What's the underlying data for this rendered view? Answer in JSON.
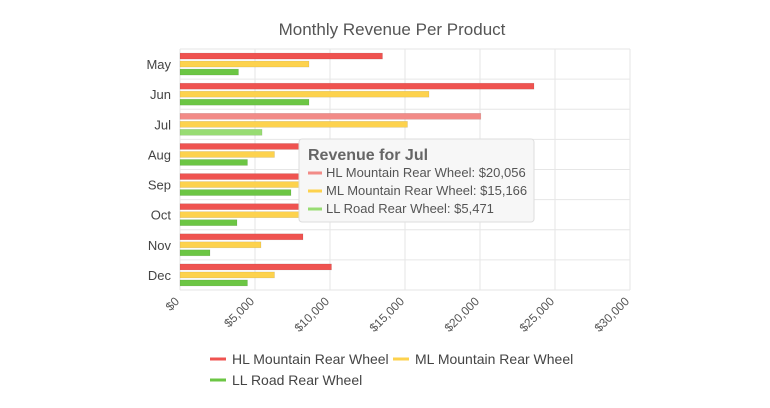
{
  "chart_data": {
    "type": "bar",
    "orientation": "horizontal",
    "title": "Monthly Revenue Per Product",
    "categories": [
      "May",
      "Jun",
      "Jul",
      "Aug",
      "Sep",
      "Oct",
      "Nov",
      "Dec"
    ],
    "series": [
      {
        "name": "HL Mountain Rear Wheel",
        "color": "#ef5350",
        "highlight_color": "#f28b87",
        "values": [
          13500,
          23600,
          20056,
          8000,
          8000,
          8000,
          8200,
          10100
        ]
      },
      {
        "name": "ML Mountain Rear Wheel",
        "color": "#fdd24d",
        "highlight_color": "#fdd24d",
        "values": [
          8600,
          16600,
          15166,
          6300,
          8000,
          8000,
          5400,
          6300
        ]
      },
      {
        "name": "LL Road Rear Wheel",
        "color": "#6cc644",
        "highlight_color": "#98dc73",
        "values": [
          3900,
          8600,
          5471,
          4500,
          7400,
          3800,
          2000,
          4500
        ]
      }
    ],
    "xlim": [
      0,
      30000
    ],
    "xticks": [
      "$0",
      "$5,000",
      "$10,000",
      "$15,000",
      "$20,000",
      "$25,000",
      "$30,000"
    ],
    "grid": true,
    "legend_position": "bottom",
    "highlighted_category": "Jul"
  },
  "tooltip": {
    "title": "Revenue for Jul",
    "lines": [
      "HL Mountain Rear Wheel: $20,056",
      "ML Mountain Rear Wheel: $15,166",
      "LL Road Rear Wheel: $5,471"
    ]
  },
  "legend": {
    "items": [
      "HL Mountain Rear Wheel",
      "ML Mountain Rear Wheel",
      "LL Road Rear Wheel"
    ]
  }
}
